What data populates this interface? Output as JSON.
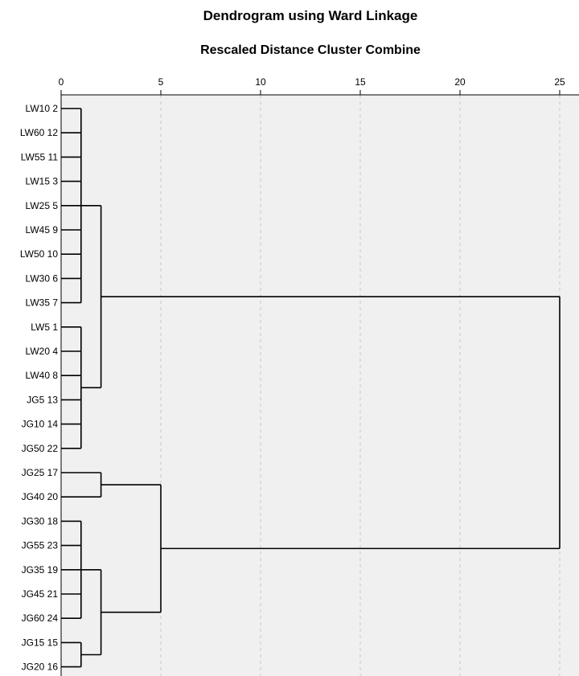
{
  "chart_data": {
    "type": "dendrogram",
    "title": "Dendrogram using Ward Linkage",
    "xlabel": "Rescaled Distance Cluster Combine",
    "xlim": [
      0,
      25
    ],
    "xticks": [
      0,
      5,
      10,
      15,
      20,
      25
    ],
    "grid": true,
    "colors": {
      "plot_background": "#f0f0f0",
      "grid": "#c8c8c8",
      "lines": "#000000"
    },
    "leaves": [
      "LW10 2",
      "LW60 12",
      "LW55 11",
      "LW15 3",
      "LW25 5",
      "LW45 9",
      "LW50 10",
      "LW30 6",
      "LW35 7",
      "LW5 1",
      "LW20 4",
      "LW40 8",
      "JG5 13",
      "JG10 14",
      "JG50 22",
      "JG25 17",
      "JG40 20",
      "JG30 18",
      "JG55 23",
      "JG35 19",
      "JG45 21",
      "JG60 24",
      "JG15 15",
      "JG20 16"
    ],
    "merges": [
      {
        "id": "A",
        "height": 1,
        "children": [
          "LW10 2",
          "LW60 12",
          "LW55 11",
          "LW15 3",
          "LW25 5",
          "LW45 9",
          "LW50 10",
          "LW30 6",
          "LW35 7"
        ]
      },
      {
        "id": "B",
        "height": 1,
        "children": [
          "LW5 1",
          "LW20 4",
          "LW40 8",
          "JG5 13",
          "JG10 14",
          "JG50 22"
        ]
      },
      {
        "id": "C",
        "height": 2,
        "children": [
          "A",
          "B"
        ]
      },
      {
        "id": "D",
        "height": 2,
        "children": [
          "JG25 17",
          "JG40 20"
        ]
      },
      {
        "id": "E",
        "height": 1,
        "children": [
          "JG30 18",
          "JG55 23",
          "JG35 19",
          "JG45 21",
          "JG60 24"
        ]
      },
      {
        "id": "F",
        "height": 1,
        "children": [
          "JG15 15",
          "JG20 16"
        ]
      },
      {
        "id": "G",
        "height": 2,
        "children": [
          "E",
          "F"
        ]
      },
      {
        "id": "H",
        "height": 5,
        "children": [
          "D",
          "G"
        ]
      },
      {
        "id": "I",
        "height": 25,
        "children": [
          "C",
          "H"
        ]
      }
    ]
  }
}
